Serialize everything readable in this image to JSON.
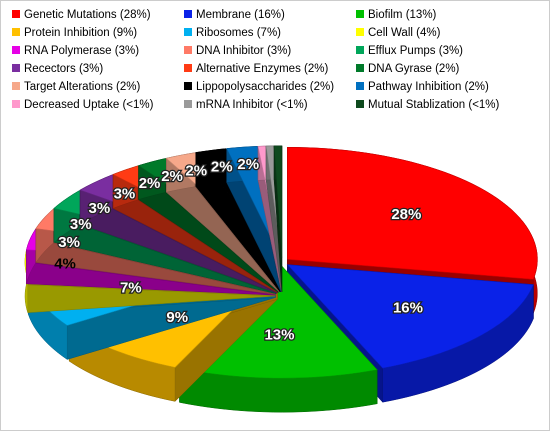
{
  "chart_data": {
    "type": "pie",
    "categories": [
      "Genetic Mutations (28%)",
      "Membrane (16%)",
      "Biofilm (13%)",
      "Protein Inhibition (9%)",
      "Ribosomes (7%)",
      "Cell Wall (4%)",
      "RNA Polymerase (3%)",
      "DNA Inhibitor (3%)",
      "Efflux Pumps (3%)",
      "Recectors (3%)",
      "Alternative Enzymes (2%)",
      "DNA Gyrase (2%)",
      "Target Alterations (2%)",
      "Lippopolysaccharides (2%)",
      "Pathway Inhibition (2%)",
      "Decreased Uptake (<1%)",
      "mRNA Inhibitor (<1%)",
      "Mutual Stablization (<1%)"
    ],
    "values": [
      28,
      16,
      13,
      9,
      7,
      4,
      3,
      3,
      3,
      3,
      2,
      2,
      2,
      2,
      2,
      0.5,
      0.5,
      0.5
    ],
    "value_labels": [
      "28%",
      "16%",
      "13%",
      "9%",
      "7%",
      "4%",
      "3%",
      "3%",
      "3%",
      "3%",
      "2%",
      "2%",
      "2%",
      "2%",
      "2%",
      null,
      null,
      null
    ],
    "colors": [
      "#ff0000",
      "#0a22e8",
      "#00c000",
      "#ffc000",
      "#00b0f0",
      "#ffff00",
      "#e600e6",
      "#ff7a66",
      "#00a65a",
      "#7a2ea0",
      "#ff3b14",
      "#007a2a",
      "#f6a88a",
      "#000000",
      "#0070c0",
      "#ff99cc",
      "#9a9a9a",
      "#0e4a1e"
    ]
  }
}
